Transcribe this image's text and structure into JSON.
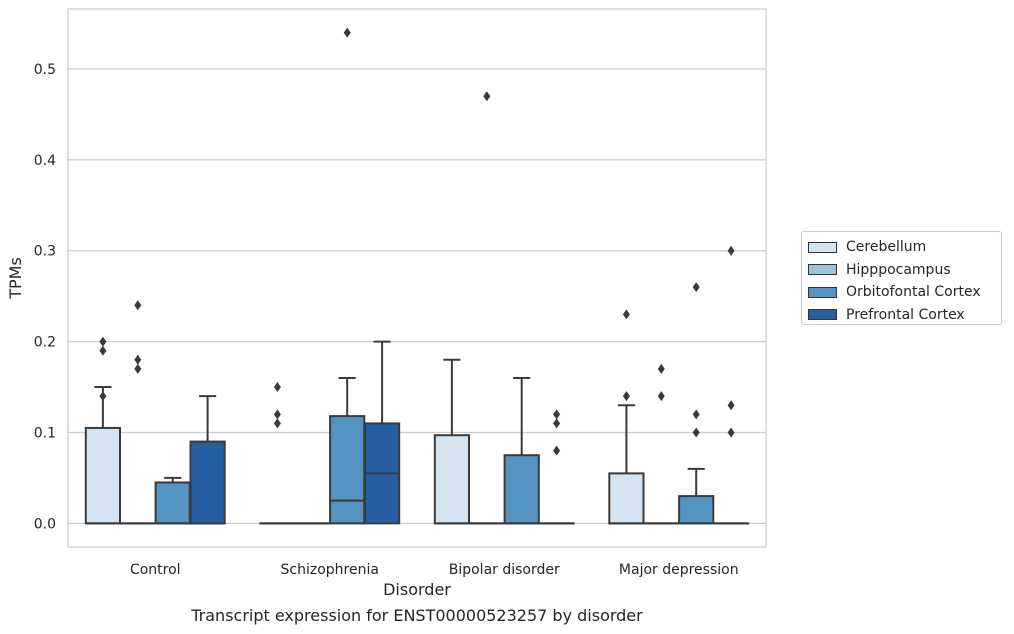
{
  "chart_data": {
    "type": "box",
    "xlabel": "Disorder",
    "ylabel": "TPMs",
    "ylim": [
      -0.026,
      0.566
    ],
    "yticks": [
      0.0,
      0.1,
      0.2,
      0.3,
      0.4,
      0.5
    ],
    "ytick_labels": [
      "0.0",
      "0.1",
      "0.2",
      "0.3",
      "0.4",
      "0.5"
    ],
    "grid": "horizontal",
    "legend_position": "outside-right",
    "categories": [
      "Control",
      "Schizophrenia",
      "Bipolar disorder",
      "Major depression"
    ],
    "series": [
      {
        "name": "Cerebellum",
        "color": "#d4e3f0",
        "boxes": [
          {
            "q1": 0.0,
            "median": 0.0,
            "q3": 0.105,
            "whisker_low": 0.0,
            "whisker_high": 0.15,
            "outliers": [
              0.14,
              0.19,
              0.2
            ]
          },
          {
            "q1": 0.0,
            "median": 0.0,
            "q3": 0.0,
            "whisker_low": 0.0,
            "whisker_high": 0.0,
            "outliers": [
              0.11,
              0.12,
              0.15
            ]
          },
          {
            "q1": 0.0,
            "median": 0.0,
            "q3": 0.097,
            "whisker_low": 0.0,
            "whisker_high": 0.18,
            "outliers": []
          },
          {
            "q1": 0.0,
            "median": 0.0,
            "q3": 0.055,
            "whisker_low": 0.0,
            "whisker_high": 0.13,
            "outliers": [
              0.14,
              0.23
            ]
          }
        ]
      },
      {
        "name": "Hipppocampus",
        "color": "#9ac3de",
        "boxes": [
          {
            "q1": 0.0,
            "median": 0.0,
            "q3": 0.0,
            "whisker_low": 0.0,
            "whisker_high": 0.0,
            "outliers": [
              0.17,
              0.18,
              0.24
            ]
          },
          {
            "q1": 0.0,
            "median": 0.0,
            "q3": 0.0,
            "whisker_low": 0.0,
            "whisker_high": 0.0,
            "outliers": []
          },
          {
            "q1": 0.0,
            "median": 0.0,
            "q3": 0.0,
            "whisker_low": 0.0,
            "whisker_high": 0.0,
            "outliers": [
              0.47
            ]
          },
          {
            "q1": 0.0,
            "median": 0.0,
            "q3": 0.0,
            "whisker_low": 0.0,
            "whisker_high": 0.0,
            "outliers": [
              0.14,
              0.17
            ]
          }
        ]
      },
      {
        "name": "Orbitofontal Cortex",
        "color": "#5494c3",
        "boxes": [
          {
            "q1": 0.0,
            "median": 0.0,
            "q3": 0.045,
            "whisker_low": 0.0,
            "whisker_high": 0.05,
            "outliers": []
          },
          {
            "q1": 0.0,
            "median": 0.025,
            "q3": 0.118,
            "whisker_low": 0.0,
            "whisker_high": 0.16,
            "outliers": [
              0.54
            ]
          },
          {
            "q1": 0.0,
            "median": 0.0,
            "q3": 0.075,
            "whisker_low": 0.0,
            "whisker_high": 0.16,
            "outliers": []
          },
          {
            "q1": 0.0,
            "median": 0.0,
            "q3": 0.03,
            "whisker_low": 0.0,
            "whisker_high": 0.06,
            "outliers": [
              0.1,
              0.12,
              0.26
            ]
          }
        ]
      },
      {
        "name": "Prefrontal Cortex",
        "color": "#2660a2",
        "boxes": [
          {
            "q1": 0.0,
            "median": 0.0,
            "q3": 0.09,
            "whisker_low": 0.0,
            "whisker_high": 0.14,
            "outliers": []
          },
          {
            "q1": 0.0,
            "median": 0.055,
            "q3": 0.11,
            "whisker_low": 0.0,
            "whisker_high": 0.2,
            "outliers": []
          },
          {
            "q1": 0.0,
            "median": 0.0,
            "q3": 0.0,
            "whisker_low": 0.0,
            "whisker_high": 0.0,
            "outliers": [
              0.08,
              0.11,
              0.12
            ]
          },
          {
            "q1": 0.0,
            "median": 0.0,
            "q3": 0.0,
            "whisker_low": 0.0,
            "whisker_high": 0.0,
            "outliers": [
              0.1,
              0.13,
              0.3
            ]
          }
        ]
      }
    ]
  },
  "caption": "Transcript expression for ENST00000523257 by disorder"
}
